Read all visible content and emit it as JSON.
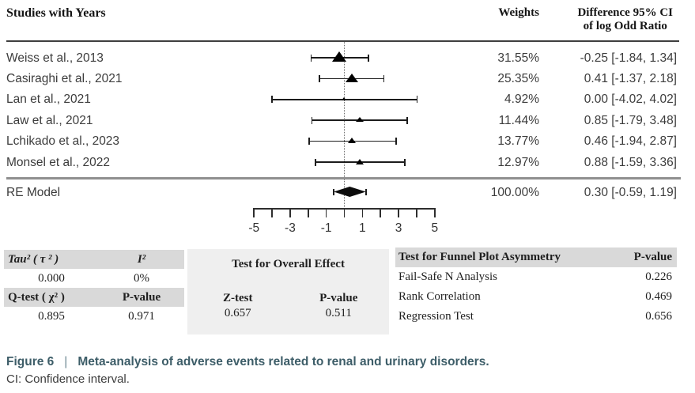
{
  "header": {
    "studies_column": "Studies with Years",
    "weights_column": "Weights",
    "difference_line1": "Difference 95% CI",
    "difference_line2": "of log Odd Ratio"
  },
  "chart_data": {
    "type": "forest",
    "title": "Meta-analysis of adverse events related to renal and urinary disorders",
    "x_axis": {
      "min": -5,
      "max": 5,
      "tick_step": 1,
      "labeled_ticks": [
        -5,
        -3,
        -1,
        1,
        3,
        5
      ]
    },
    "zero_line": 0,
    "studies": [
      {
        "label": "Weiss et al., 2013",
        "weight_pct": 31.55,
        "weight_text": "31.55%",
        "estimate": -0.25,
        "ci_low": -1.84,
        "ci_high": 1.34,
        "estimate_text": "-0.25 [-1.84, 1.34]"
      },
      {
        "label": "Casiraghi et al., 2021",
        "weight_pct": 25.35,
        "weight_text": "25.35%",
        "estimate": 0.41,
        "ci_low": -1.37,
        "ci_high": 2.18,
        "estimate_text": "0.41 [-1.37, 2.18]"
      },
      {
        "label": "Lan et al., 2021",
        "weight_pct": 4.92,
        "weight_text": "4.92%",
        "estimate": 0.0,
        "ci_low": -4.02,
        "ci_high": 4.02,
        "estimate_text": "0.00 [-4.02, 4.02]"
      },
      {
        "label": "Law et al., 2021",
        "weight_pct": 11.44,
        "weight_text": "11.44%",
        "estimate": 0.85,
        "ci_low": -1.79,
        "ci_high": 3.48,
        "estimate_text": "0.85 [-1.79, 3.48]"
      },
      {
        "label": "Lchikado et al., 2023",
        "weight_pct": 13.77,
        "weight_text": "13.77%",
        "estimate": 0.46,
        "ci_low": -1.94,
        "ci_high": 2.87,
        "estimate_text": "0.46 [-1.94, 2.87]"
      },
      {
        "label": "Monsel et al., 2022",
        "weight_pct": 12.97,
        "weight_text": "12.97%",
        "estimate": 0.88,
        "ci_low": -1.59,
        "ci_high": 3.36,
        "estimate_text": "0.88 [-1.59, 3.36]"
      }
    ],
    "summary": {
      "label": "RE Model",
      "weight_pct": 100.0,
      "weight_text": "100.00%",
      "estimate": 0.3,
      "ci_low": -0.59,
      "ci_high": 1.19,
      "estimate_text": "0.30 [-0.59, 1.19]"
    }
  },
  "stats": {
    "heterogeneity": {
      "tau2_label": "Tau² ( τ ² )",
      "tau2_value": "0.000",
      "i2_label": "I²",
      "i2_value": "0%",
      "qtest_label": "Q-test ( χ² )",
      "qtest_value": "0.895",
      "pvalue_label": "P-value",
      "pvalue_value": "0.971"
    },
    "overall_effect": {
      "title": "Test for Overall Effect",
      "ztest_label": "Z-test",
      "ztest_value": "0.657",
      "pvalue_label": "P-value",
      "pvalue_value": "0.511"
    },
    "funnel": {
      "title": "Test for Funnel Plot Asymmetry",
      "pvalue_header": "P-value",
      "rows": [
        {
          "label": "Fail-Safe N Analysis",
          "value": "0.226"
        },
        {
          "label": "Rank Correlation",
          "value": "0.469"
        },
        {
          "label": "Regression Test",
          "value": "0.656"
        }
      ]
    }
  },
  "caption": {
    "figure_label": "Figure 6",
    "separator": "|",
    "title": "Meta-analysis of adverse events related to renal and urinary disorders.",
    "note": "CI: Confidence interval."
  },
  "colors": {
    "caption_accent": "#3d5d68",
    "table_header_bg": "#d9d9d9",
    "panel_bg": "#efefef",
    "marker": "#000000"
  }
}
